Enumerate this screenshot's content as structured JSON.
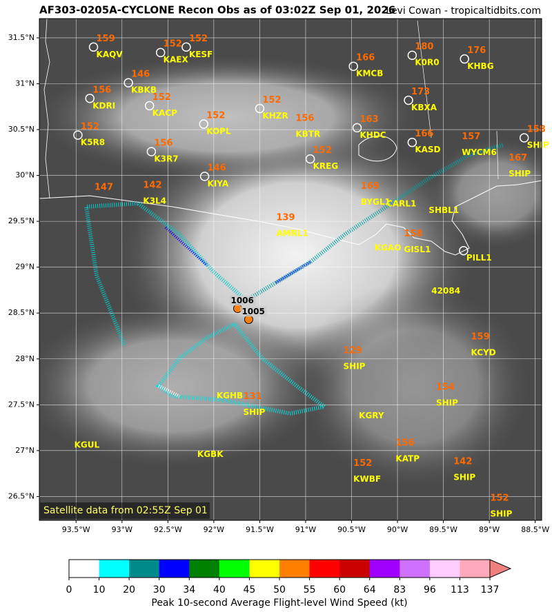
{
  "chart_data": {
    "type": "map",
    "title": "AF303-0205A-CYCLONE Recon Obs as of 03:02Z Sep 01, 2026",
    "credit": "Levi Cowan - tropicaltidbits.com",
    "note": "Satellite data from 02:55Z Sep 01",
    "xlim": [
      -93.9,
      -88.43
    ],
    "ylim": [
      26.24,
      31.71
    ],
    "grid": true,
    "xticks": [
      {
        "value": -93.5,
        "label": "93.5°W"
      },
      {
        "value": -93,
        "label": "93°W"
      },
      {
        "value": -92.5,
        "label": "92.5°W"
      },
      {
        "value": -92,
        "label": "92°W"
      },
      {
        "value": -91.5,
        "label": "91.5°W"
      },
      {
        "value": -91,
        "label": "91°W"
      },
      {
        "value": -90.5,
        "label": "90.5°W"
      },
      {
        "value": -90,
        "label": "90°W"
      },
      {
        "value": -89.5,
        "label": "89.5°W"
      },
      {
        "value": -89,
        "label": "89°W"
      },
      {
        "value": -88.5,
        "label": "88.5°W"
      }
    ],
    "yticks": [
      {
        "value": 26.5,
        "label": "26.5°N"
      },
      {
        "value": 27,
        "label": "27°N"
      },
      {
        "value": 27.5,
        "label": "27.5°N"
      },
      {
        "value": 28,
        "label": "28°N"
      },
      {
        "value": 28.5,
        "label": "28.5°N"
      },
      {
        "value": 29,
        "label": "29°N"
      },
      {
        "value": 29.5,
        "label": "29.5°N"
      },
      {
        "value": 30,
        "label": "30°N"
      },
      {
        "value": 30.5,
        "label": "30.5°N"
      },
      {
        "value": 31,
        "label": "31°N"
      },
      {
        "value": 31.5,
        "label": "31.5°N"
      }
    ],
    "stations": [
      {
        "id": "KAQV",
        "value": 159,
        "lon": -93.31,
        "lat": 31.4,
        "circle": true
      },
      {
        "id": "KAEX",
        "value": 152,
        "lon": -92.58,
        "lat": 31.34,
        "circle": true
      },
      {
        "id": "KESF",
        "value": 152,
        "lon": -92.3,
        "lat": 31.4,
        "circle": true
      },
      {
        "id": "KMCB",
        "value": 166,
        "lon": -90.48,
        "lat": 31.19,
        "circle": true
      },
      {
        "id": "K0R0",
        "value": 180,
        "lon": -89.84,
        "lat": 31.31,
        "circle": true
      },
      {
        "id": "KHBG",
        "value": 176,
        "lon": -89.27,
        "lat": 31.27,
        "circle": true
      },
      {
        "id": "KBKB",
        "value": 146,
        "lon": -92.93,
        "lat": 31.01,
        "circle": true
      },
      {
        "id": "KDRI",
        "value": 156,
        "lon": -93.35,
        "lat": 30.84,
        "circle": true
      },
      {
        "id": "KACP",
        "value": 152,
        "lon": -92.7,
        "lat": 30.76,
        "circle": true
      },
      {
        "id": "KHZR",
        "value": 152,
        "lon": -91.5,
        "lat": 30.73,
        "circle": true
      },
      {
        "id": "KBXA",
        "value": 173,
        "lon": -89.88,
        "lat": 30.82,
        "circle": true
      },
      {
        "id": "KOPL",
        "value": 152,
        "lon": -92.11,
        "lat": 30.56,
        "circle": true
      },
      {
        "id": "KBTR",
        "value": 156,
        "lon": -91.14,
        "lat": 30.53,
        "circle": false
      },
      {
        "id": "KHDC",
        "value": 163,
        "lon": -90.44,
        "lat": 30.52,
        "circle": true
      },
      {
        "id": "K5R8",
        "value": 152,
        "lon": -93.48,
        "lat": 30.44,
        "circle": true
      },
      {
        "id": "KASD",
        "value": 166,
        "lon": -89.84,
        "lat": 30.36,
        "circle": true
      },
      {
        "id": "WYCM6",
        "value": 157,
        "lon": -89.33,
        "lat": 30.33,
        "circle": false
      },
      {
        "id": "SHIP",
        "value": 158,
        "lon": -88.62,
        "lat": 30.41,
        "circle": true
      },
      {
        "id": "K3R7",
        "value": 156,
        "lon": -92.68,
        "lat": 30.26,
        "circle": true
      },
      {
        "id": "KREG",
        "value": 152,
        "lon": -90.95,
        "lat": 30.18,
        "circle": true
      },
      {
        "id": "KIYA",
        "value": 146,
        "lon": -92.1,
        "lat": 29.99,
        "circle": true
      },
      {
        "id": "SHIP",
        "value": 167,
        "lon": -88.82,
        "lat": 30.1,
        "circle": false
      },
      {
        "id": "K3L4",
        "value": 142,
        "lon": -92.8,
        "lat": 29.8,
        "circle": false
      },
      {
        "id": null,
        "value": 147,
        "lon": -93.33,
        "lat": 29.78,
        "circle": false
      },
      {
        "id": "BYGL1",
        "value": 169,
        "lon": -90.43,
        "lat": 29.79,
        "circle": false
      },
      {
        "id": "CARL1",
        "value": null,
        "lon": -90.15,
        "lat": 29.77,
        "circle": false
      },
      {
        "id": "SHBL1",
        "value": null,
        "lon": -89.69,
        "lat": 29.7,
        "circle": false
      },
      {
        "id": "AMRL1",
        "value": 139,
        "lon": -91.35,
        "lat": 29.45,
        "circle": false
      },
      {
        "id": "KGAO",
        "value": null,
        "lon": -90.28,
        "lat": 29.29,
        "circle": false
      },
      {
        "id": "GISL1",
        "value": 158,
        "lon": -89.96,
        "lat": 29.27,
        "circle": false
      },
      {
        "id": "PILL1",
        "value": null,
        "lon": -89.28,
        "lat": 29.18,
        "circle": true
      },
      {
        "id": "42084",
        "value": null,
        "lon": -89.66,
        "lat": 28.82,
        "circle": false
      },
      {
        "id": "SHIP",
        "value": 129,
        "lon": -90.62,
        "lat": 28.0,
        "circle": false
      },
      {
        "id": "KCYD",
        "value": 159,
        "lon": -89.23,
        "lat": 28.15,
        "circle": false
      },
      {
        "id": "KGHB",
        "value": null,
        "lon": -92.0,
        "lat": 27.68,
        "circle": false
      },
      {
        "id": "SHIP",
        "value": 131,
        "lon": -91.71,
        "lat": 27.5,
        "circle": false
      },
      {
        "id": "KGRY",
        "value": null,
        "lon": -90.45,
        "lat": 27.46,
        "circle": false
      },
      {
        "id": "SHIP",
        "value": 154,
        "lon": -89.61,
        "lat": 27.6,
        "circle": false
      },
      {
        "id": "KGUL",
        "value": null,
        "lon": -93.55,
        "lat": 27.14,
        "circle": false
      },
      {
        "id": "KGBK",
        "value": null,
        "lon": -92.21,
        "lat": 27.04,
        "circle": false
      },
      {
        "id": "KATP",
        "value": 156,
        "lon": -90.05,
        "lat": 26.99,
        "circle": false
      },
      {
        "id": "KWBF",
        "value": 152,
        "lon": -90.51,
        "lat": 26.77,
        "circle": false
      },
      {
        "id": "SHIP",
        "value": 142,
        "lon": -89.42,
        "lat": 26.79,
        "circle": false
      },
      {
        "id": "SHIP",
        "value": 152,
        "lon": -89.02,
        "lat": 26.39,
        "circle": false
      }
    ],
    "pressures": [
      {
        "value": 1006,
        "lon": -91.74,
        "lat": 28.55,
        "color": "#ff7f0e"
      },
      {
        "value": 1005,
        "lon": -91.62,
        "lat": 28.43,
        "color": "#ff7f0e"
      }
    ],
    "colorbar": {
      "label": "Peak 10-second Average Flight-level Wind Speed (kt)",
      "ticks": [
        0,
        10,
        20,
        30,
        34,
        40,
        45,
        50,
        55,
        60,
        64,
        83,
        96,
        113,
        137
      ],
      "colors": [
        "#ffffff",
        "#00ffff",
        "#008b8b",
        "#0000ff",
        "#008000",
        "#00ff00",
        "#ffff00",
        "#ff7f00",
        "#ff0000",
        "#c80000",
        "#a000ff",
        "#d070ff",
        "#ffccff",
        "#ffaabb"
      ],
      "extend_color": "#f08080"
    }
  }
}
